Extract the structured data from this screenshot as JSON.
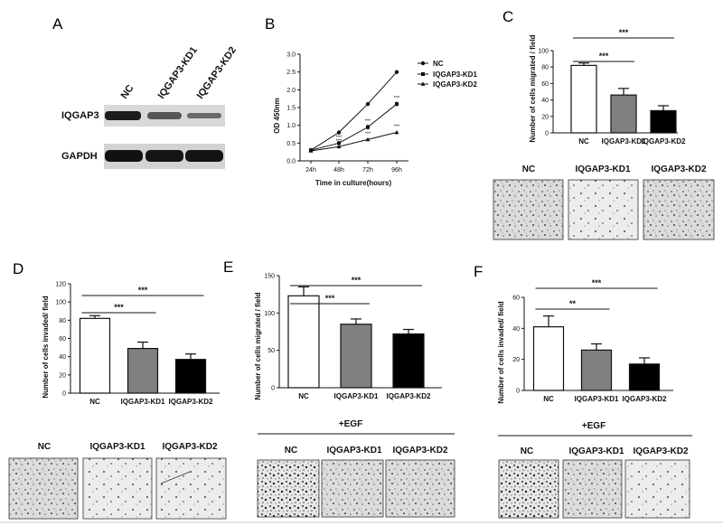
{
  "panels": {
    "A": {
      "letter": "A",
      "lanes": [
        "NC",
        "IQGAP3-KD1",
        "IQGAP3-KD2"
      ],
      "rows": [
        "IQGAP3",
        "GAPDH"
      ]
    },
    "B": {
      "letter": "B",
      "ylabel": "OD 450nm",
      "xlabel": "Time in culture(hours)",
      "x_ticks": [
        "24h",
        "48h",
        "72h",
        "96h"
      ],
      "y_ticks": [
        "0.0",
        "0.5",
        "1.0",
        "1.5",
        "2.0",
        "2.5",
        "3.0"
      ],
      "legend": [
        "NC",
        "IQGAP3-KD1",
        "IQGAP3-KD2"
      ],
      "star_label": "***"
    },
    "C": {
      "letter": "C",
      "ylabel": "Number of cells migrated / field",
      "categories": [
        "NC",
        "IQGAP3-KD1",
        "IQGAP3-KD2"
      ],
      "y_ticks": [
        "0",
        "20",
        "40",
        "60",
        "80",
        "100"
      ],
      "sig": [
        "***",
        "***"
      ],
      "image_labels": [
        "NC",
        "IQGAP3-KD1",
        "IQGAP3-KD2"
      ]
    },
    "D": {
      "letter": "D",
      "ylabel": "Number of cells invaded/ field",
      "categories": [
        "NC",
        "IQGAP3-KD1",
        "IQGAP3-KD2"
      ],
      "y_ticks": [
        "0",
        "20",
        "40",
        "60",
        "80",
        "100",
        "120"
      ],
      "sig": [
        "***",
        "***"
      ],
      "image_labels": [
        "NC",
        "IQGAP3-KD1",
        "IQGAP3-KD2"
      ]
    },
    "E": {
      "letter": "E",
      "ylabel": "Number of cells migrated / field",
      "categories": [
        "NC",
        "IQGAP3-KD1",
        "IQGAP3-KD2"
      ],
      "y_ticks": [
        "0",
        "50",
        "100",
        "150"
      ],
      "sig": [
        "***",
        "***"
      ],
      "egf_label": "+EGF",
      "image_labels": [
        "NC",
        "IQGAP3-KD1",
        "IQGAP3-KD2"
      ]
    },
    "F": {
      "letter": "F",
      "ylabel": "Number of cells invaded/ field",
      "categories": [
        "NC",
        "IQGAP3-KD1",
        "IQGAP3-KD2"
      ],
      "y_ticks": [
        "0",
        "20",
        "40",
        "60"
      ],
      "sig": [
        "**",
        "***"
      ],
      "egf_label": "+EGF",
      "image_labels": [
        "NC",
        "IQGAP3-KD1",
        "IQGAP3-KD2"
      ]
    }
  },
  "colors": {
    "nc": "#ffffff",
    "kd1": "#808080",
    "kd2": "#000000"
  },
  "chart_data": [
    {
      "panel": "B",
      "type": "line",
      "x": [
        "24h",
        "48h",
        "72h",
        "96h"
      ],
      "series": [
        {
          "name": "NC",
          "values": [
            0.3,
            0.8,
            1.6,
            2.5
          ]
        },
        {
          "name": "IQGAP3-KD1",
          "values": [
            0.3,
            0.5,
            0.95,
            1.6
          ]
        },
        {
          "name": "IQGAP3-KD2",
          "values": [
            0.28,
            0.4,
            0.6,
            0.8
          ]
        }
      ],
      "errors": [
        [
          0.03,
          0.05,
          0.05,
          0.04
        ],
        [
          0.03,
          0.05,
          0.08,
          0.07
        ],
        [
          0.02,
          0.04,
          0.04,
          0.04
        ]
      ],
      "ylabel": "OD 450nm",
      "xlabel": "Time in culture(hours)",
      "ylim": [
        0,
        3
      ]
    },
    {
      "panel": "C",
      "type": "bar",
      "categories": [
        "NC",
        "IQGAP3-KD1",
        "IQGAP3-KD2"
      ],
      "values": [
        82,
        46,
        27
      ],
      "errors": [
        3,
        8,
        6
      ],
      "ylabel": "Number of cells migrated / field",
      "ylim": [
        0,
        100
      ]
    },
    {
      "panel": "D",
      "type": "bar",
      "categories": [
        "NC",
        "IQGAP3-KD1",
        "IQGAP3-KD2"
      ],
      "values": [
        82,
        49,
        37
      ],
      "errors": [
        3,
        7,
        6
      ],
      "ylabel": "Number of cells invaded/ field",
      "ylim": [
        0,
        120
      ]
    },
    {
      "panel": "E",
      "type": "bar",
      "categories": [
        "NC",
        "IQGAP3-KD1",
        "IQGAP3-KD2"
      ],
      "values": [
        123,
        85,
        72
      ],
      "errors": [
        12,
        7,
        6
      ],
      "ylabel": "Number of cells migrated / field",
      "ylim": [
        0,
        150
      ]
    },
    {
      "panel": "F",
      "type": "bar",
      "categories": [
        "NC",
        "IQGAP3-KD1",
        "IQGAP3-KD2"
      ],
      "values": [
        41,
        26,
        17
      ],
      "errors": [
        7,
        4,
        4
      ],
      "ylabel": "Number of cells invaded/ field",
      "ylim": [
        0,
        60
      ]
    }
  ]
}
